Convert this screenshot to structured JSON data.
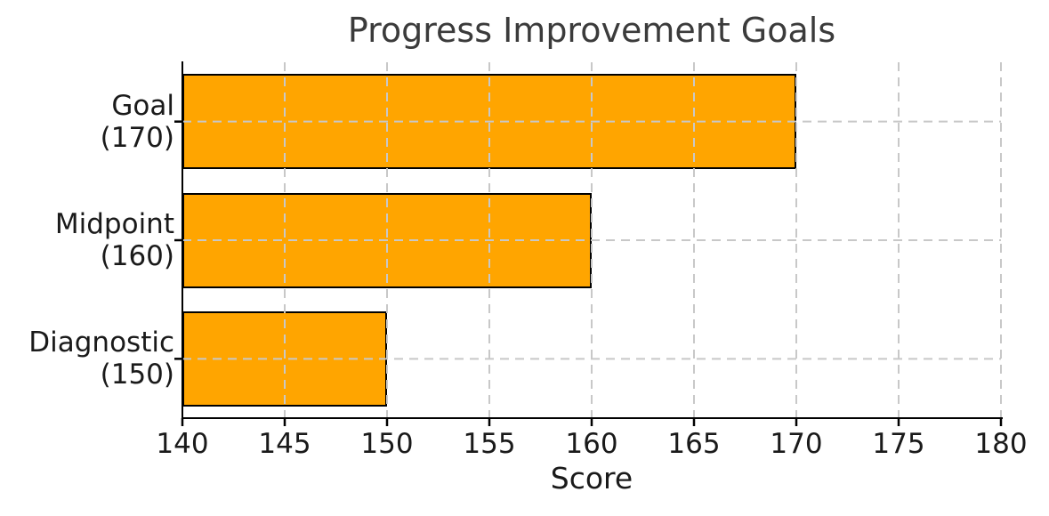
{
  "chart_data": {
    "type": "bar",
    "orientation": "horizontal",
    "title": "Progress Improvement Goals",
    "xlabel": "Score",
    "ylabel": "",
    "categories": [
      "Goal",
      "Midpoint",
      "Diagnostic"
    ],
    "values": [
      170,
      160,
      150
    ],
    "ytick_labels": [
      [
        "Goal",
        "(170)"
      ],
      [
        "Midpoint",
        "(160)"
      ],
      [
        "Diagnostic",
        "(150)"
      ]
    ],
    "bar_base": 140,
    "xlim": [
      140,
      180
    ],
    "xticks": [
      140,
      145,
      150,
      155,
      160,
      165,
      170,
      175,
      180
    ],
    "grid": {
      "visible": true,
      "style": "dashed",
      "drawn_over_bars": true
    },
    "legend": "none",
    "colors": {
      "bar_fill": "#FFA500",
      "bar_edge": "#000000",
      "grid_line": "#c8c8c8",
      "spine": "#000000",
      "title_text": "#3b3b3b",
      "tick_text": "#1a1a1a",
      "background": "#ffffff"
    }
  }
}
